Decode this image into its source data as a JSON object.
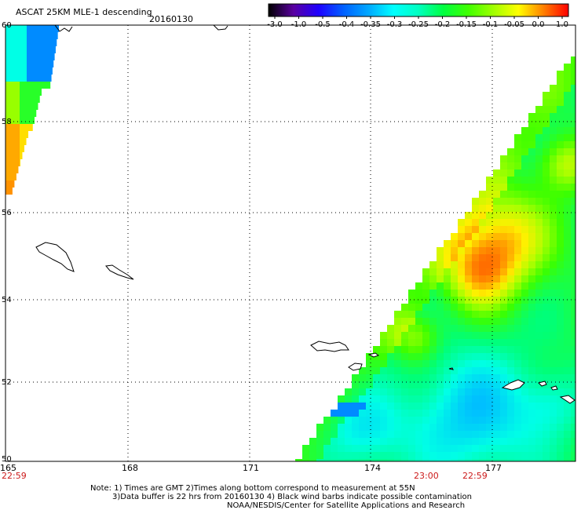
{
  "header": {
    "title": "ASCAT 25KM MLE-1 descending",
    "date": "20160130"
  },
  "colorbar": {
    "labels": [
      "-3.0",
      "-1.0",
      "-0.5",
      "-0.4",
      "-0.35",
      "-0.3",
      "-0.25",
      "-0.2",
      "-0.15",
      "-0.1",
      "-0.05",
      "0.0",
      "1.0"
    ],
    "colors": [
      "#000000",
      "#5a00a0",
      "#1e00ff",
      "#0060ff",
      "#00a8ff",
      "#00ffff",
      "#00ffc0",
      "#00ff40",
      "#40ff00",
      "#a0ff00",
      "#ffff00",
      "#ff8000",
      "#ff0000"
    ]
  },
  "axes": {
    "latitude_labels": [
      "60",
      "58",
      "56",
      "54",
      "52",
      "50"
    ],
    "longitude_labels": [
      "165",
      "168",
      "171",
      "174",
      "177"
    ]
  },
  "time_labels": [
    "22:59",
    "23:00",
    "22:59"
  ],
  "notes": [
    "Note: 1) Times are GMT 2)Times along bottom correspond to measurement at 55N",
    "3)Data buffer is 22 hrs from 20160130 4) Black wind barbs indicate possible contamination",
    "NOAA/NESDIS/Center for Satellite Applications and Research"
  ]
}
